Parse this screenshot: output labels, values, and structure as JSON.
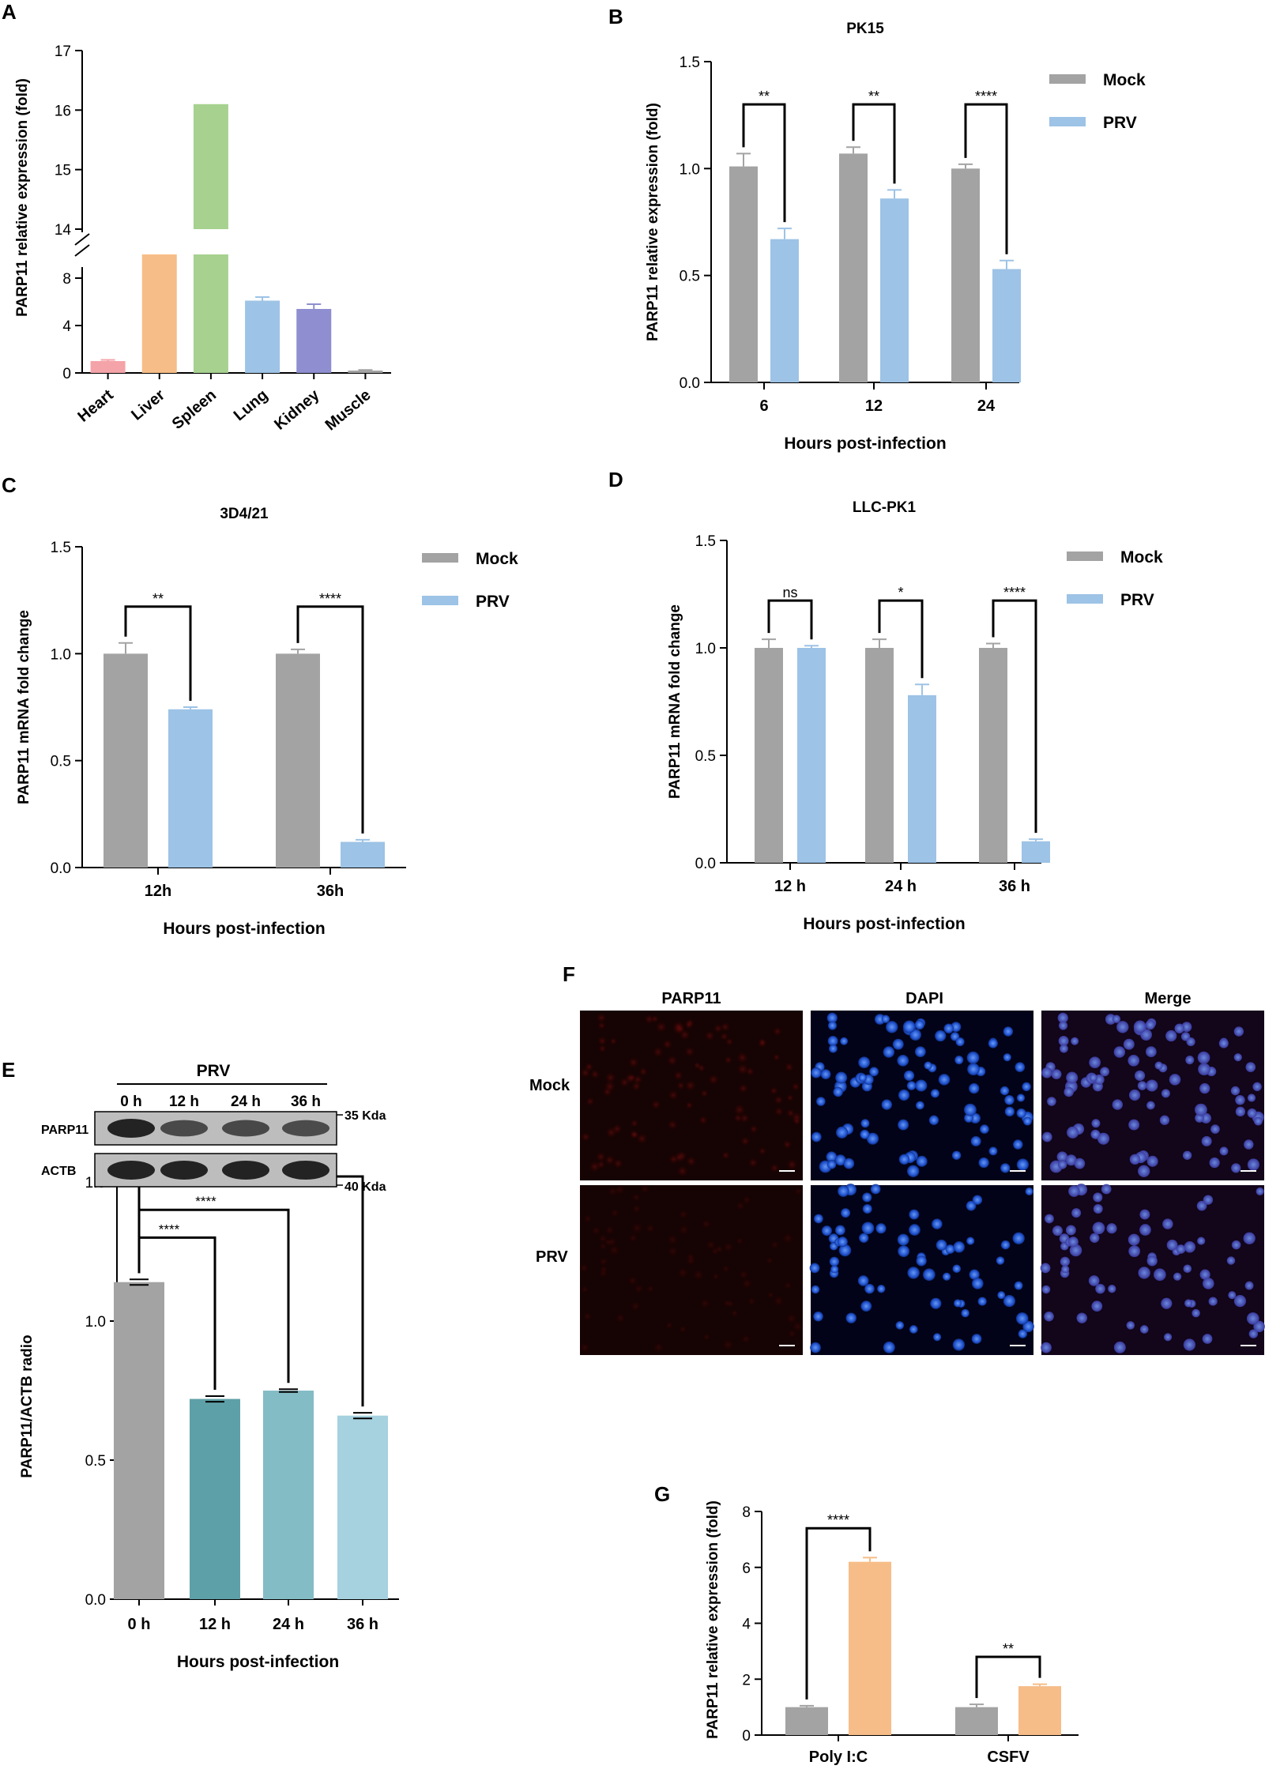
{
  "colors": {
    "mock": "#a3a3a3",
    "prv": "#9dc3e6",
    "heart": "#f4a3a8",
    "liver": "#f6bd88",
    "spleen": "#a6d18f",
    "lung": "#9dc3e6",
    "kidney": "#8e8ed0",
    "muscle": "#a3a3a3",
    "e_0h": "#a3a3a3",
    "e_12h": "#5ea0a8",
    "e_24h": "#84bcc6",
    "e_36h": "#a6d1df",
    "g_orange": "#f6bd88"
  },
  "panel_labels": {
    "a": "A",
    "b": "B",
    "c": "C",
    "d": "D",
    "e": "E",
    "f": "F",
    "g": "G"
  },
  "chart_data": [
    {
      "panel": "A",
      "type": "bar",
      "title": "",
      "xlabel": "",
      "ylabel": "PARP11 relative expression (fold)",
      "categories": [
        "Heart",
        "Liver",
        "Spleen",
        "Lung",
        "Kidney",
        "Muscle"
      ],
      "values": [
        1.0,
        8.4,
        16.1,
        6.1,
        5.4,
        0.2
      ],
      "errors": [
        0.1,
        0.6,
        0.0,
        0.3,
        0.4,
        0.05
      ],
      "broken_axis": true,
      "lower_ticks": [
        "0",
        "4",
        "8"
      ],
      "upper_ticks": [
        "14",
        "15",
        "16",
        "17"
      ]
    },
    {
      "panel": "B",
      "type": "bar",
      "title": "PK15",
      "xlabel": "Hours post-infection",
      "ylabel": "PARP11 relative expression (fold)",
      "categories": [
        "6",
        "12",
        "24"
      ],
      "series": [
        {
          "name": "Mock",
          "values": [
            1.01,
            1.07,
            1.0
          ],
          "errors": [
            0.06,
            0.03,
            0.02
          ]
        },
        {
          "name": "PRV",
          "values": [
            0.67,
            0.86,
            0.53
          ],
          "errors": [
            0.05,
            0.04,
            0.04
          ]
        }
      ],
      "ylim": [
        0,
        1.5
      ],
      "yticks": [
        "0.0",
        "0.5",
        "1.0",
        "1.5"
      ],
      "significance": [
        "**",
        "**",
        "****"
      ],
      "legend": "top-right"
    },
    {
      "panel": "C",
      "type": "bar",
      "title": "3D4/21",
      "xlabel": "Hours post-infection",
      "ylabel": "PARP11 mRNA fold change",
      "categories": [
        "12h",
        "36h"
      ],
      "series": [
        {
          "name": "Mock",
          "values": [
            1.0,
            1.0
          ],
          "errors": [
            0.05,
            0.02
          ]
        },
        {
          "name": "PRV",
          "values": [
            0.74,
            0.12
          ],
          "errors": [
            0.01,
            0.01
          ]
        }
      ],
      "ylim": [
        0,
        1.5
      ],
      "yticks": [
        "0.0",
        "0.5",
        "1.0",
        "1.5"
      ],
      "significance": [
        "**",
        "****"
      ],
      "legend": "top-right"
    },
    {
      "panel": "D",
      "type": "bar",
      "title": "LLC-PK1",
      "xlabel": "Hours post-infection",
      "ylabel": "PARP11 mRNA fold change",
      "categories": [
        "12 h",
        "24 h",
        "36 h"
      ],
      "series": [
        {
          "name": "Mock",
          "values": [
            1.0,
            1.0,
            1.0
          ],
          "errors": [
            0.04,
            0.04,
            0.02
          ]
        },
        {
          "name": "PRV",
          "values": [
            1.0,
            0.78,
            0.1
          ],
          "errors": [
            0.01,
            0.05,
            0.01
          ]
        }
      ],
      "ylim": [
        0,
        1.5
      ],
      "yticks": [
        "0.0",
        "0.5",
        "1.0",
        "1.5"
      ],
      "significance": [
        "ns",
        "*",
        "****"
      ],
      "legend": "top-right"
    },
    {
      "panel": "E",
      "type": "bar",
      "title": "",
      "xlabel": "Hours post-infection",
      "ylabel": "PARP11/ACTB radio",
      "categories": [
        "0 h",
        "12 h",
        "24 h",
        "36 h"
      ],
      "values": [
        1.14,
        0.72,
        0.75,
        0.66
      ],
      "errors": [
        0.01,
        0.01,
        0.005,
        0.01
      ],
      "ylim": [
        0,
        1.5
      ],
      "yticks": [
        "0.0",
        "0.5",
        "1.0",
        "1.5"
      ],
      "significance": [
        "****",
        "****",
        "****"
      ]
    },
    {
      "panel": "G",
      "type": "bar",
      "title": "",
      "xlabel": "",
      "ylabel": "PARP11 relative expression (fold)",
      "categories": [
        "Poly I:C",
        "CSFV"
      ],
      "series": [
        {
          "values": [
            1.0,
            1.0
          ],
          "errors": [
            0.05,
            0.1
          ]
        },
        {
          "values": [
            6.2,
            1.75
          ],
          "errors": [
            0.15,
            0.07
          ]
        }
      ],
      "ylim": [
        0,
        8
      ],
      "yticks": [
        "0",
        "2",
        "4",
        "6",
        "8"
      ],
      "significance": [
        "****",
        "**"
      ]
    }
  ],
  "blot": {
    "header": "PRV",
    "lanes": [
      "0 h",
      "12 h",
      "24 h",
      "36 h"
    ],
    "rows": [
      "PARP11",
      "ACTB"
    ],
    "markers": [
      "35 Kda",
      "40 Kda"
    ],
    "band_intensity": {
      "PARP11": [
        1.0,
        0.6,
        0.62,
        0.58
      ],
      "ACTB": [
        1.0,
        1.0,
        1.0,
        1.0
      ]
    }
  },
  "micro": {
    "columns": [
      "PARP11",
      "DAPI",
      "Merge"
    ],
    "rows": [
      "Mock",
      "PRV"
    ]
  }
}
